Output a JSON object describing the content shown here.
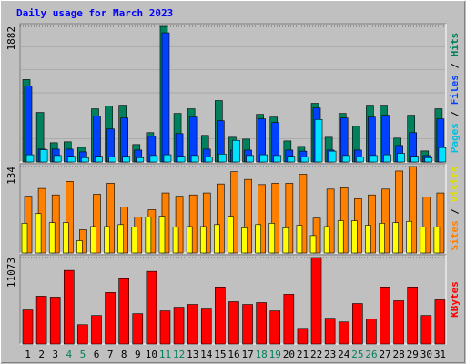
{
  "title": "Daily usage for March 2023",
  "legend_separator": " / ",
  "chart_data": [
    {
      "type": "bar",
      "ylim": [
        0,
        1882
      ],
      "yticks": [
        1882
      ],
      "series": [
        {
          "name": "Pages",
          "color": "#00e0ff",
          "label_color": "#00c0e0",
          "values": [
            100,
            170,
            90,
            80,
            60,
            80,
            70,
            80,
            60,
            90,
            100,
            80,
            90,
            70,
            110,
            300,
            90,
            100,
            90,
            80,
            70,
            590,
            150,
            90,
            70,
            90,
            100,
            120,
            80,
            60,
            200
          ]
        },
        {
          "name": "Files",
          "color": "#0040ff",
          "label_color": "#0040ff",
          "values": [
            1055,
            178,
            178,
            178,
            140,
            636,
            458,
            610,
            165,
            356,
            1793,
            394,
            623,
            178,
            572,
            165,
            165,
            598,
            547,
            165,
            150,
            750,
            165,
            610,
            165,
            623,
            649,
            229,
            407,
            89,
            598
          ]
        },
        {
          "name": "Hits",
          "color": "#00805c",
          "label_color": "#00805c",
          "values": [
            1144,
            687,
            267,
            280,
            203,
            738,
            776,
            788,
            242,
            407,
            1882,
            674,
            738,
            369,
            852,
            343,
            318,
            661,
            623,
            292,
            216,
            814,
            343,
            674,
            496,
            788,
            788,
            331,
            649,
            153,
            738
          ]
        }
      ]
    },
    {
      "type": "bar",
      "ylim": [
        0,
        134
      ],
      "yticks": [
        134
      ],
      "series": [
        {
          "name": "Sites",
          "color": "#ffff00",
          "label_color": "#ff8000",
          "values": [
            46,
            61,
            47,
            47,
            19,
            41,
            41,
            44,
            40,
            56,
            57,
            40,
            41,
            41,
            44,
            57,
            39,
            44,
            46,
            39,
            43,
            27,
            41,
            50,
            50,
            43,
            46,
            47,
            49,
            40,
            40
          ]
        },
        {
          "name": "Visits",
          "color": "#ff8000",
          "label_color": "#e0e000",
          "values": [
            88,
            100,
            90,
            111,
            36,
            91,
            108,
            71,
            56,
            67,
            93,
            88,
            90,
            93,
            107,
            126,
            114,
            106,
            108,
            108,
            122,
            54,
            99,
            101,
            84,
            90,
            99,
            127,
            134,
            87,
            93
          ]
        }
      ]
    },
    {
      "type": "bar",
      "ylim": [
        0,
        11073
      ],
      "yticks": [
        11073
      ],
      "series": [
        {
          "name": "KBytes",
          "color": "#ff0000",
          "label_color": "#ff0000",
          "values": [
            4359,
            6126,
            6008,
            9424,
            2474,
            3652,
            6597,
            8364,
            3888,
            9306,
            4241,
            4712,
            5066,
            4477,
            7304,
            5419,
            5066,
            5301,
            4241,
            6361,
            2003,
            11073,
            3299,
            2827,
            5183,
            3181,
            7304,
            5537,
            7304,
            3652,
            5655
          ]
        }
      ],
      "categories": [
        "1",
        "2",
        "3",
        "4",
        "5",
        "6",
        "7",
        "8",
        "9",
        "10",
        "11",
        "12",
        "13",
        "14",
        "15",
        "16",
        "17",
        "18",
        "19",
        "20",
        "21",
        "22",
        "23",
        "24",
        "25",
        "26",
        "27",
        "28",
        "29",
        "30",
        "31"
      ],
      "weekend": [
        false,
        false,
        false,
        true,
        true,
        false,
        false,
        false,
        false,
        false,
        true,
        true,
        false,
        false,
        false,
        false,
        false,
        true,
        true,
        false,
        false,
        false,
        false,
        false,
        true,
        true,
        false,
        false,
        false,
        false,
        false
      ],
      "weekday_color": "#000000",
      "weekend_color": "#00805c"
    }
  ]
}
